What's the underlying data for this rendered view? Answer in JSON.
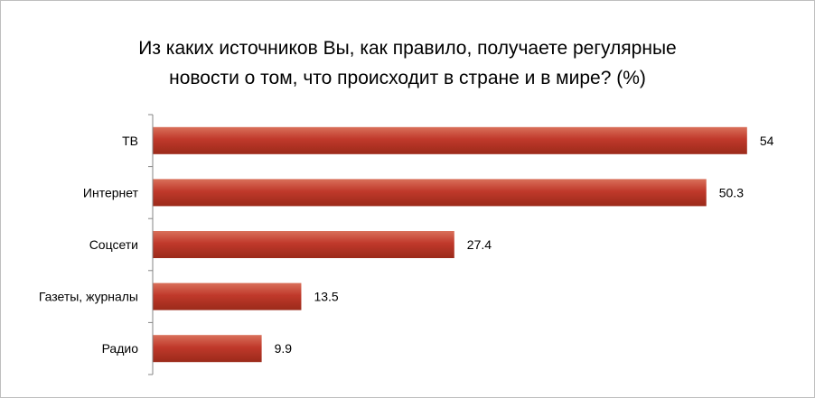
{
  "chart_data": {
    "type": "bar",
    "orientation": "horizontal",
    "title_lines": [
      "Из каких источников Вы, как правило, получаете регулярные",
      "новости о том, что происходит в стране и в мире? (%)"
    ],
    "categories": [
      "ТВ",
      "Интернет",
      "Соцсети",
      "Газеты, журналы",
      "Радио"
    ],
    "values": [
      54,
      50.3,
      27.4,
      13.5,
      9.9
    ],
    "value_labels": [
      "54",
      "50.3",
      "27.4",
      "13.5",
      "9.9"
    ],
    "xlim": [
      0,
      55
    ],
    "grid": false,
    "legend": "none",
    "bar_color": "#c0392b",
    "bar_color_light": "#d9705a",
    "bar_color_dark": "#9b2a1a"
  }
}
